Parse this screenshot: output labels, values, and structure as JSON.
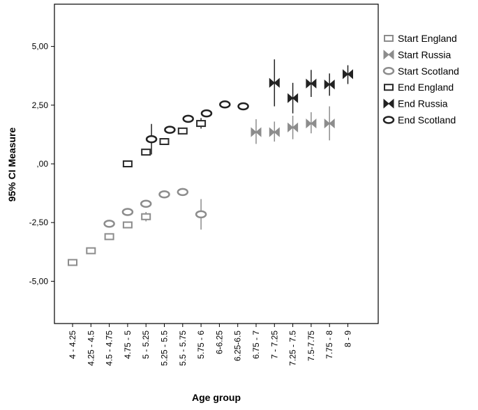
{
  "chart_data": {
    "type": "scatter",
    "xlabel": "Age group",
    "ylabel": "95% CI Measure",
    "categories": [
      "4 - 4.25",
      "4.25 - 4.5",
      "4.5 - 4.75",
      "4.75 - 5",
      "5 - 5.25",
      "5.25 - 5.5",
      "5.5 - 5.75",
      "5.75 - 6",
      "6-6.25",
      "6.25-6.5",
      "6.75 - 7",
      "7 - 7.25",
      "7.25 - 7.5",
      "7.5-7.75",
      "7.75 - 8",
      "8 - 9"
    ],
    "ylim": [
      -6.8,
      6.8
    ],
    "yticks": [
      -5,
      -2.5,
      0,
      2.5,
      5
    ],
    "ytick_labels": [
      "-5,00",
      "-2,50",
      ",00",
      "2,50",
      "5,00"
    ],
    "grid": false,
    "legend_position": "right",
    "series": [
      {
        "name": "Start England",
        "marker": "square-open",
        "color": "#8c8c8c",
        "points": [
          {
            "x": 0,
            "y": -4.2,
            "lo": -4.3,
            "hi": -4.1
          },
          {
            "x": 1,
            "y": -3.7,
            "lo": -3.8,
            "hi": -3.6
          },
          {
            "x": 2,
            "y": -3.1,
            "lo": -3.2,
            "hi": -3.0
          },
          {
            "x": 3,
            "y": -2.6,
            "lo": -2.7,
            "hi": -2.5
          },
          {
            "x": 4,
            "y": -2.25,
            "lo": -2.45,
            "hi": -2.05
          }
        ]
      },
      {
        "name": "Start Russia",
        "marker": "bowtie",
        "color": "#8c8c8c",
        "points": [
          {
            "x": 10,
            "y": 1.35,
            "lo": 0.85,
            "hi": 1.9
          },
          {
            "x": 11,
            "y": 1.35,
            "lo": 0.95,
            "hi": 1.8
          },
          {
            "x": 12,
            "y": 1.55,
            "lo": 1.05,
            "hi": 2.05
          },
          {
            "x": 13,
            "y": 1.72,
            "lo": 1.3,
            "hi": 2.2
          },
          {
            "x": 14,
            "y": 1.72,
            "lo": 1.0,
            "hi": 2.45
          }
        ]
      },
      {
        "name": "Start Scotland",
        "marker": "ellipse",
        "color": "#8c8c8c",
        "points": [
          {
            "x": 2,
            "y": -2.55,
            "lo": -2.55,
            "hi": -2.55
          },
          {
            "x": 3,
            "y": -2.05,
            "lo": -2.05,
            "hi": -2.05
          },
          {
            "x": 4,
            "y": -1.7,
            "lo": -1.7,
            "hi": -1.7
          },
          {
            "x": 5,
            "y": -1.3,
            "lo": -1.3,
            "hi": -1.3
          },
          {
            "x": 6,
            "y": -1.2,
            "lo": -1.2,
            "hi": -1.2
          },
          {
            "x": 7,
            "y": -2.15,
            "lo": -2.8,
            "hi": -1.5
          }
        ]
      },
      {
        "name": "End England",
        "marker": "square-open",
        "color": "#2a2a2a",
        "points": [
          {
            "x": 3,
            "y": 0.0,
            "lo": -0.08,
            "hi": 0.08
          },
          {
            "x": 4,
            "y": 0.5,
            "lo": 0.4,
            "hi": 0.6
          },
          {
            "x": 5,
            "y": 0.95,
            "lo": 0.85,
            "hi": 1.05
          },
          {
            "x": 6,
            "y": 1.4,
            "lo": 1.3,
            "hi": 1.5
          },
          {
            "x": 7,
            "y": 1.72,
            "lo": 1.5,
            "hi": 1.95
          }
        ]
      },
      {
        "name": "End Russia",
        "marker": "bowtie",
        "color": "#222222",
        "points": [
          {
            "x": 11,
            "y": 3.45,
            "lo": 2.45,
            "hi": 4.45
          },
          {
            "x": 12,
            "y": 2.8,
            "lo": 2.15,
            "hi": 3.45
          },
          {
            "x": 13,
            "y": 3.42,
            "lo": 2.85,
            "hi": 4.0
          },
          {
            "x": 14,
            "y": 3.38,
            "lo": 2.9,
            "hi": 3.85
          },
          {
            "x": 15,
            "y": 3.82,
            "lo": 3.4,
            "hi": 4.2
          }
        ]
      },
      {
        "name": "End Scotland",
        "marker": "ellipse",
        "color": "#222222",
        "points": [
          {
            "x": 4.3,
            "y": 1.05,
            "lo": 0.4,
            "hi": 1.7
          },
          {
            "x": 5.3,
            "y": 1.45,
            "lo": 1.45,
            "hi": 1.45
          },
          {
            "x": 6.3,
            "y": 1.92,
            "lo": 1.92,
            "hi": 1.92
          },
          {
            "x": 7.3,
            "y": 2.15,
            "lo": 2.15,
            "hi": 2.15
          },
          {
            "x": 8.3,
            "y": 2.53,
            "lo": 2.53,
            "hi": 2.53
          },
          {
            "x": 9.3,
            "y": 2.45,
            "lo": 2.3,
            "hi": 2.6
          }
        ]
      }
    ]
  }
}
